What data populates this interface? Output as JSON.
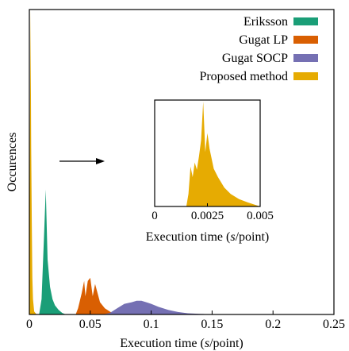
{
  "chart_data": [
    {
      "type": "area",
      "xlabel": "Execution time (s/point)",
      "ylabel": "Occurences",
      "xlim": [
        0,
        0.25
      ],
      "ylim": [
        0,
        1.0
      ],
      "xticks": [
        "0",
        "0.05",
        "0.1",
        "0.15",
        "0.2",
        "0.25"
      ],
      "xtick_values": [
        0,
        0.05,
        0.1,
        0.15,
        0.2,
        0.25
      ],
      "y_axis_values_shown": false,
      "grid": false,
      "legend_position": "top-right",
      "series": [
        {
          "name": "Eriksson",
          "color": "#1a9e77",
          "x": [
            0.008,
            0.01,
            0.012,
            0.0135,
            0.015,
            0.017,
            0.019,
            0.021,
            0.024,
            0.027,
            0.03
          ],
          "y": [
            0.0,
            0.05,
            0.25,
            0.41,
            0.18,
            0.09,
            0.05,
            0.03,
            0.015,
            0.005,
            0.0
          ]
        },
        {
          "name": "Gugat LP",
          "color": "#d95f02",
          "x": [
            0.038,
            0.04,
            0.043,
            0.045,
            0.046,
            0.048,
            0.05,
            0.052,
            0.054,
            0.056,
            0.058,
            0.062,
            0.066,
            0.07
          ],
          "y": [
            0.0,
            0.02,
            0.07,
            0.11,
            0.06,
            0.11,
            0.12,
            0.06,
            0.1,
            0.07,
            0.04,
            0.02,
            0.01,
            0.0
          ]
        },
        {
          "name": "Gugat SOCP",
          "color": "#7570b3",
          "x": [
            0.06,
            0.066,
            0.072,
            0.078,
            0.084,
            0.088,
            0.092,
            0.096,
            0.1,
            0.106,
            0.114,
            0.122,
            0.13,
            0.14,
            0.15
          ],
          "y": [
            0.0,
            0.005,
            0.02,
            0.035,
            0.04,
            0.045,
            0.045,
            0.04,
            0.035,
            0.025,
            0.015,
            0.008,
            0.004,
            0.002,
            0.0
          ]
        },
        {
          "name": "Proposed method",
          "color": "#e6ab02",
          "x": [
            0.0,
            0.0005,
            0.001,
            0.0015,
            0.002,
            0.0025,
            0.003,
            0.004,
            0.006
          ],
          "y": [
            0.0,
            0.6,
            1.0,
            0.55,
            0.3,
            0.12,
            0.05,
            0.01,
            0.0
          ]
        }
      ]
    },
    {
      "type": "area",
      "role": "inset",
      "xlabel": "Execution time (s/point)",
      "xlim": [
        0,
        0.005
      ],
      "ylim": [
        0,
        1.0
      ],
      "xticks": [
        "0",
        "0.0025",
        "0.005"
      ],
      "xtick_values": [
        0,
        0.0025,
        0.005
      ],
      "series": [
        {
          "name": "Proposed method",
          "color": "#e6ab02",
          "x": [
            0.0015,
            0.0016,
            0.0017,
            0.0018,
            0.0019,
            0.002,
            0.0021,
            0.0022,
            0.0023,
            0.0024,
            0.0025,
            0.0026,
            0.0028,
            0.003,
            0.0033,
            0.0036,
            0.004,
            0.0044,
            0.0047,
            0.005
          ],
          "y": [
            0.0,
            0.12,
            0.38,
            0.28,
            0.42,
            0.35,
            0.48,
            0.63,
            1.0,
            0.52,
            0.7,
            0.55,
            0.36,
            0.28,
            0.18,
            0.12,
            0.07,
            0.04,
            0.02,
            0.0
          ]
        }
      ]
    }
  ]
}
